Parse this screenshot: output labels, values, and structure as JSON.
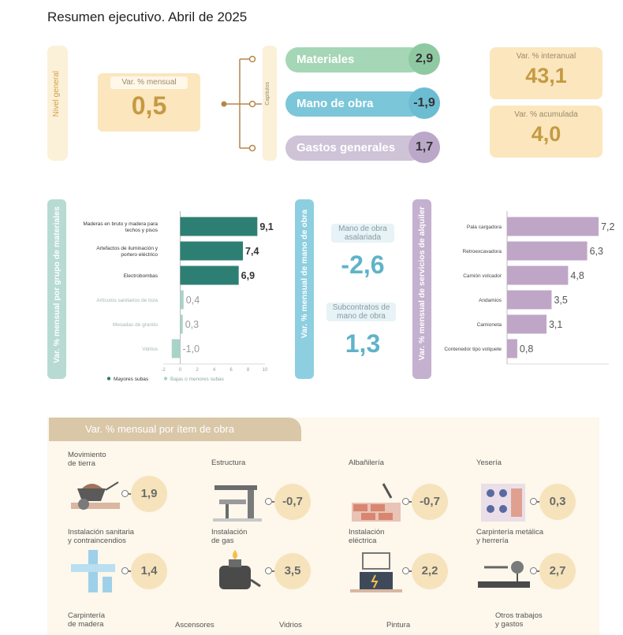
{
  "title": "Resumen ejecutivo. Abril de 2025",
  "nivel_general": {
    "side_label": "Nivel general",
    "mensual_label": "Var. % mensual",
    "mensual_value": "0,5",
    "capitulos_label": "Capítulos"
  },
  "capitulos": [
    {
      "name": "Materiales",
      "value": "2,9",
      "color": "#a5d6b6"
    },
    {
      "name": "Mano de obra",
      "value": "-1,9",
      "color": "#7cc6d9"
    },
    {
      "name": "Gastos generales",
      "value": "1,7",
      "color": "#cfc3d8"
    }
  ],
  "interanual": {
    "label": "Var. % interanual",
    "value": "43,1"
  },
  "acumulada": {
    "label": "Var. % acumulada",
    "value": "4,0"
  },
  "mano_obra_panel": {
    "side_label": "Var. % mensual de mano de obra",
    "asalariada_label": "Mano de obra asalariada",
    "asalariada_value": "-2,6",
    "subcontratos_label": "Subcontratos de mano de obra",
    "subcontratos_value": "1,3"
  },
  "chart_data": [
    {
      "type": "bar",
      "side_label": "Var. % mensual por grupo de materiales",
      "categories": [
        "Maderas en bruto y madera para techos y pisos",
        "Artefactos de iluminación y portero eléctrico",
        "Electrobombas",
        "Artículos sanitarios de loza",
        "Mesadas de granito",
        "Vidrios"
      ],
      "values": [
        9.1,
        7.4,
        6.9,
        0.4,
        0.3,
        -1.0
      ],
      "value_labels": [
        "9,1",
        "7,4",
        "6,9",
        "0,4",
        "0,3",
        "-1,0"
      ],
      "series_group": [
        "Mayores subas",
        "Mayores subas",
        "Mayores subas",
        "Bajas o menores subas",
        "Bajas o menores subas",
        "Bajas o menores subas"
      ],
      "legend": [
        "Mayores subas",
        "Bajas o menores subas"
      ],
      "xlim": [
        -2,
        10
      ],
      "xticks": [
        "-2",
        "0",
        "2",
        "4",
        "6",
        "8",
        "10"
      ],
      "colors": {
        "strong": "#2e7f73",
        "light": "#a9d3c8"
      }
    },
    {
      "type": "bar",
      "side_label": "Var. % mensual de servicios de alquiler",
      "categories": [
        "Pala cargadora",
        "Retroexcavadora",
        "Camión volcador",
        "Andamios",
        "Camioneta",
        "Contenedor tipo volquete"
      ],
      "values": [
        7.2,
        6.3,
        4.8,
        3.5,
        3.1,
        0.8
      ],
      "value_labels": [
        "7,2",
        "6,3",
        "4,8",
        "3,5",
        "3,1",
        "0,8"
      ],
      "xlim": [
        0,
        8
      ],
      "xticks": [
        "0",
        "2",
        "4",
        "6",
        "8"
      ],
      "colors": {
        "bar": "#bfa6c7"
      }
    }
  ],
  "items_header": "Var. % mensual por ítem de obra",
  "items": [
    {
      "label1": "Movimiento",
      "label2": "de tierra",
      "value": "1,9",
      "icon": "wheelbarrow-icon"
    },
    {
      "label1": "Estructura",
      "label2": "",
      "value": "-0,7",
      "icon": "structure-icon"
    },
    {
      "label1": "Albañilería",
      "label2": "",
      "value": "-0,7",
      "icon": "bricks-icon"
    },
    {
      "label1": "Yesería",
      "label2": "",
      "value": "0,3",
      "icon": "plaster-icon"
    },
    {
      "label1": "Instalación sanitaria",
      "label2": "y contraincendios",
      "value": "1,4",
      "icon": "pipes-icon"
    },
    {
      "label1": "Instalación",
      "label2": "de gas",
      "value": "3,5",
      "icon": "gas-cylinder-icon"
    },
    {
      "label1": "Instalación",
      "label2": "eléctrica",
      "value": "2,2",
      "icon": "electric-panel-icon"
    },
    {
      "label1": "Carpintería metálica",
      "label2": "y herrería",
      "value": "2,7",
      "icon": "welding-icon"
    }
  ],
  "items_row3": [
    {
      "label1": "Carpintería",
      "label2": "de madera"
    },
    {
      "label1": "Ascensores",
      "label2": ""
    },
    {
      "label1": "Vidrios",
      "label2": ""
    },
    {
      "label1": "Pintura",
      "label2": ""
    },
    {
      "label1": "Otros trabajos",
      "label2": "y gastos"
    }
  ]
}
